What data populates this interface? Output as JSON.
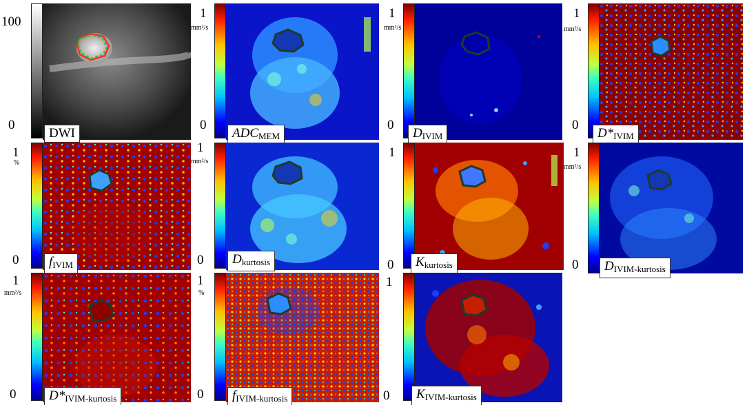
{
  "colors": {
    "jet_dark_blue": "#00008f",
    "jet_dark_red": "#800000",
    "roi_outline": "#1f3a2a",
    "roi_dwi_red": "#ff2a2a",
    "roi_dwi_green": "#2ecc2e"
  },
  "panels": [
    {
      "id": "dwi",
      "label_main": "DWI",
      "label_sub": "",
      "italic": false,
      "max_label": "100",
      "min_label": "0",
      "unit": "",
      "colormap": "gray"
    },
    {
      "id": "adc_mem",
      "label_main": "ADC",
      "label_sub": "MEM",
      "italic": true,
      "max_label": "1",
      "min_label": "0",
      "unit": "mm²/s",
      "colormap": "jet"
    },
    {
      "id": "d_ivim",
      "label_main": "D",
      "label_sub": "IVIM",
      "italic": true,
      "max_label": "1",
      "min_label": "0",
      "unit": "mm²/s",
      "colormap": "jet"
    },
    {
      "id": "dstar_ivim",
      "label_main": "D*",
      "label_sub": "IVIM",
      "italic": true,
      "max_label": "1",
      "min_label": "0",
      "unit": "mm²/s",
      "colormap": "jet"
    },
    {
      "id": "f_ivim",
      "label_main": "f",
      "label_sub": "IVIM",
      "italic": true,
      "max_label": "1",
      "min_label": "0",
      "unit": "%",
      "colormap": "jet"
    },
    {
      "id": "d_kurtosis",
      "label_main": "D",
      "label_sub": "kurtosis",
      "italic": true,
      "max_label": "1",
      "min_label": "0",
      "unit": "mm²/s",
      "colormap": "jet"
    },
    {
      "id": "k_kurtosis",
      "label_main": "K",
      "label_sub": "kurtosis",
      "italic": true,
      "max_label": "1",
      "min_label": "0",
      "unit": "",
      "colormap": "jet"
    },
    {
      "id": "d_ivim_kurtosis",
      "label_main": "D",
      "label_sub": "IVIM-kurtosis",
      "italic": true,
      "max_label": "1",
      "min_label": "0",
      "unit": "mm²/s",
      "colormap": "jet"
    },
    {
      "id": "dstar_ivim_kurtosis",
      "label_main": "D*",
      "label_sub": "IVIM-kurtosis",
      "italic": true,
      "max_label": "1",
      "min_label": "0",
      "unit": "mm²/s",
      "colormap": "jet"
    },
    {
      "id": "f_ivim_kurtosis",
      "label_main": "f",
      "label_sub": "IVIM-kurtosis",
      "italic": true,
      "max_label": "1",
      "min_label": "0",
      "unit": "%",
      "colormap": "jet"
    },
    {
      "id": "k_ivim_kurtosis",
      "label_main": "K",
      "label_sub": "IVIM-kurtosis",
      "italic": true,
      "max_label": "1",
      "min_label": "0",
      "unit": "",
      "colormap": "jet"
    }
  ]
}
